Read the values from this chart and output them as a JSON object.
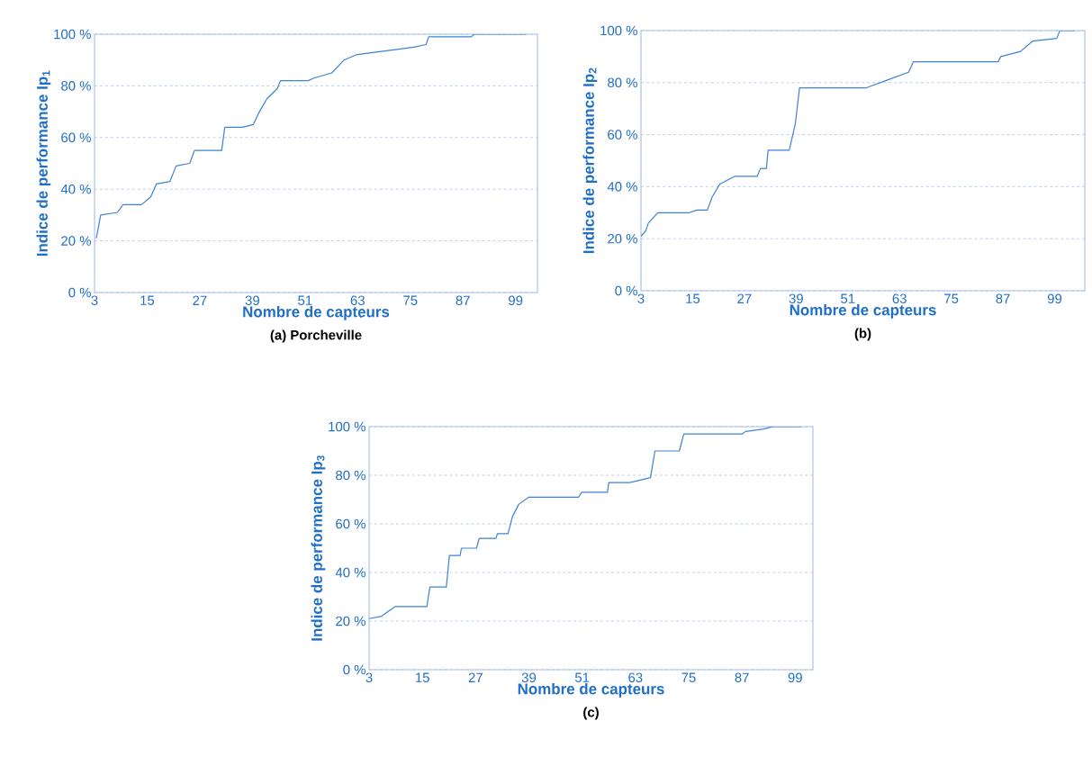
{
  "chart_data": [
    {
      "type": "line",
      "title": "(a) Porcheville",
      "xlabel": "Nombre de capteurs",
      "ylabel": "Indice de performance Ip$_{1}$",
      "color": "#3c82d8",
      "grid": "y",
      "xlim": [
        3,
        104
      ],
      "ylim": [
        0,
        100
      ],
      "xticks": [
        3,
        15,
        27,
        39,
        51,
        63,
        75,
        87,
        99
      ],
      "yticks": [
        {
          "value": 0,
          "label": "0 %"
        },
        {
          "value": 20,
          "label": "20 %"
        },
        {
          "value": 40,
          "label": "40 %"
        },
        {
          "value": 60,
          "label": "60 %"
        },
        {
          "value": 80,
          "label": "80 %"
        },
        {
          "value": 100,
          "label": "100 %"
        }
      ],
      "x": [
        3.4,
        4.4,
        8.2,
        9.5,
        13.7,
        15.8,
        17.1,
        20.2,
        21.6,
        24.7,
        25.8,
        32,
        32.7,
        36.8,
        39.2,
        40.6,
        42.3,
        44.7,
        45.4,
        51.7,
        53,
        57.1,
        59.9,
        62.6,
        66.8,
        71.6,
        75.8,
        78.6,
        79.2,
        88.9,
        89.6,
        101.3
      ],
      "values": [
        21,
        30,
        31,
        34,
        34,
        37,
        42,
        43,
        49,
        50,
        55,
        55,
        64,
        64,
        65,
        70,
        75,
        79,
        82,
        82,
        83,
        85,
        90,
        92,
        93,
        94,
        95,
        96,
        99,
        99,
        100,
        100
      ]
    },
    {
      "type": "line",
      "title": "(b)",
      "xlabel": "Nombre de capteurs",
      "ylabel": "Indice de performance Ip$_{2}$",
      "color": "#3c82d8",
      "grid": "y",
      "xlim": [
        3,
        106
      ],
      "ylim": [
        0,
        100
      ],
      "xticks": [
        3,
        15,
        27,
        39,
        51,
        63,
        75,
        87,
        99
      ],
      "yticks": [
        {
          "value": 0,
          "label": "0 %"
        },
        {
          "value": 20,
          "label": "20 %"
        },
        {
          "value": 40,
          "label": "40 %"
        },
        {
          "value": 60,
          "label": "60 %"
        },
        {
          "value": 80,
          "label": "80 %"
        },
        {
          "value": 100,
          "label": "100 %"
        }
      ],
      "x": [
        3,
        4.1,
        4.7,
        6.9,
        14.2,
        16,
        18.4,
        19.5,
        21.3,
        24.8,
        30,
        30.7,
        32.1,
        32.5,
        37.4,
        38.8,
        39.8,
        55.3,
        60.2,
        65.1,
        66.2,
        85.9,
        86.5,
        91.1,
        93.9,
        99.5,
        100.2,
        103.7
      ],
      "values": [
        21,
        23,
        26,
        30,
        30,
        31,
        31,
        36,
        41,
        44,
        44,
        47,
        47,
        54,
        54,
        64,
        78,
        78,
        81,
        84,
        88,
        88,
        90,
        92,
        96,
        97,
        100,
        100
      ]
    },
    {
      "type": "line",
      "title": "(c)",
      "xlabel": "Nombre de capteurs",
      "ylabel": "Indice de performance Ip$_{3}$",
      "color": "#3c82d8",
      "grid": "y",
      "xlim": [
        3,
        103
      ],
      "ylim": [
        0,
        100
      ],
      "xticks": [
        3,
        15,
        27,
        39,
        51,
        63,
        75,
        87,
        99
      ],
      "yticks": [
        {
          "value": 0,
          "label": "0 %"
        },
        {
          "value": 20,
          "label": "20 %"
        },
        {
          "value": 40,
          "label": "40 %"
        },
        {
          "value": 60,
          "label": "60 %"
        },
        {
          "value": 80,
          "label": "80 %"
        },
        {
          "value": 100,
          "label": "100 %"
        }
      ],
      "x": [
        3,
        5.8,
        8.9,
        16,
        16.7,
        20.4,
        21.1,
        23.5,
        23.8,
        27.2,
        27.8,
        31.6,
        31.9,
        34.3,
        35.3,
        36.7,
        39,
        50.2,
        50.9,
        56.7,
        57,
        61.7,
        66.4,
        67.4,
        72.9,
        73.9,
        87.1,
        87.8,
        91.9,
        93.9,
        100.4
      ],
      "values": [
        21,
        22,
        26,
        26,
        34,
        34,
        47,
        47,
        50,
        50,
        54,
        54,
        56,
        56,
        63,
        68,
        71,
        71,
        73,
        73,
        77,
        77,
        79,
        90,
        90,
        97,
        97,
        98,
        99,
        100,
        100
      ]
    }
  ]
}
